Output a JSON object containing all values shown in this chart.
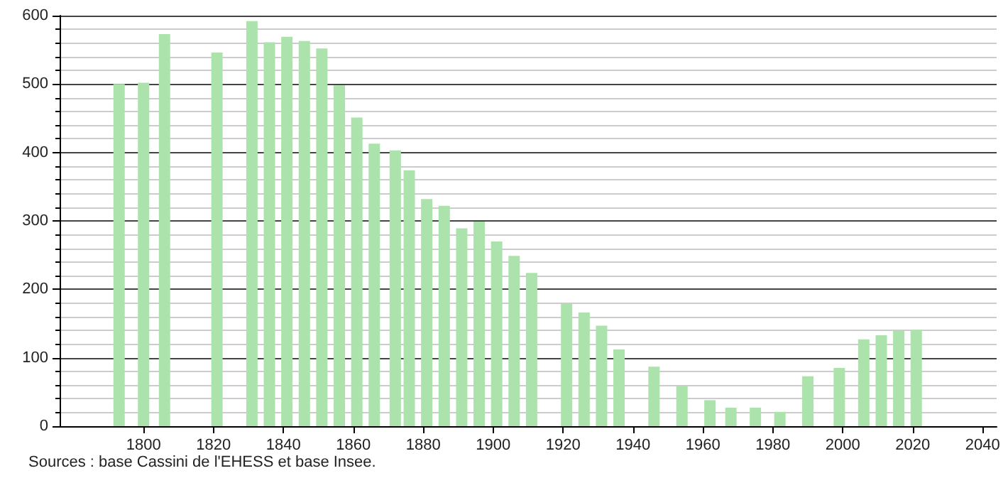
{
  "chart_data": {
    "type": "bar",
    "x": [
      1793,
      1800,
      1806,
      1821,
      1831,
      1836,
      1841,
      1846,
      1851,
      1856,
      1861,
      1866,
      1872,
      1876,
      1881,
      1886,
      1891,
      1896,
      1901,
      1906,
      1911,
      1921,
      1926,
      1931,
      1936,
      1946,
      1954,
      1962,
      1968,
      1975,
      1982,
      1990,
      1999,
      2006,
      2011,
      2016,
      2021
    ],
    "values": [
      500,
      502,
      573,
      546,
      592,
      561,
      569,
      563,
      552,
      498,
      451,
      413,
      403,
      374,
      332,
      322,
      289,
      299,
      270,
      249,
      224,
      179,
      166,
      147,
      112,
      87,
      59,
      38,
      27,
      27,
      21,
      73,
      85,
      127,
      133,
      139,
      141
    ],
    "color": "#ace3ac",
    "xlim": [
      1776,
      2044
    ],
    "xticks": [
      1800,
      1820,
      1840,
      1860,
      1880,
      1900,
      1920,
      1940,
      1960,
      1980,
      2000,
      2020,
      2040
    ],
    "ylim": [
      0,
      600
    ],
    "yticks": [
      0,
      100,
      200,
      300,
      400,
      500,
      600
    ],
    "grid": "y",
    "annotations": [
      "Sources : base Cassini de l'EHESS et base Insee."
    ]
  }
}
